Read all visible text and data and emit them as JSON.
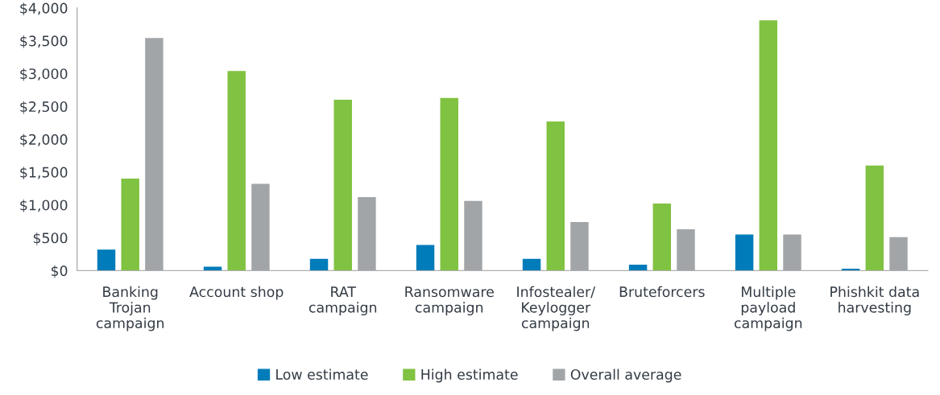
{
  "chart_data": {
    "type": "bar",
    "categories": [
      "Banking\nTrojan\ncampaign",
      "Account shop",
      "RAT\ncampaign",
      "Ransomware\ncampaign",
      "Infostealer/\nKeylogger\ncampaign",
      "Bruteforcers",
      "Multiple\npayload\ncampaign",
      "Phishkit data\nharvesting"
    ],
    "series": [
      {
        "name": "Low estimate",
        "color": "#007cba",
        "values": [
          320,
          60,
          180,
          390,
          180,
          90,
          550,
          30
        ]
      },
      {
        "name": "High estimate",
        "color": "#80c241",
        "values": [
          1400,
          3040,
          2600,
          2630,
          2270,
          1020,
          3810,
          1600
        ]
      },
      {
        "name": "Overall average",
        "color": "#a2a5a8",
        "values": [
          3540,
          1320,
          1120,
          1060,
          740,
          630,
          550,
          510
        ]
      }
    ],
    "ylim": [
      0,
      4000
    ],
    "yticks": [
      {
        "value": 0,
        "label": "$0"
      },
      {
        "value": 500,
        "label": "$500"
      },
      {
        "value": 1000,
        "label": "$1,000"
      },
      {
        "value": 1500,
        "label": "$1,500"
      },
      {
        "value": 2000,
        "label": "$2,000"
      },
      {
        "value": 2500,
        "label": "$2,500"
      },
      {
        "value": 3000,
        "label": "$3,000"
      },
      {
        "value": 3500,
        "label": "$3,500"
      },
      {
        "value": 4000,
        "label": "$4,000"
      }
    ],
    "grid": false,
    "legend": "bottom"
  }
}
